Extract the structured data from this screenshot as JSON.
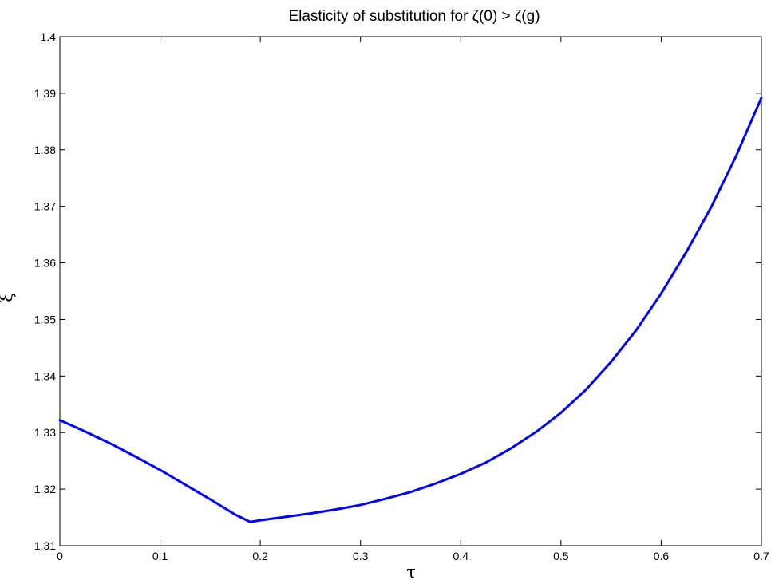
{
  "chart_data": {
    "type": "line",
    "title": "Elasticity of substitution for ζ(0) > ζ(g)",
    "xlabel": "τ",
    "ylabel": "ξ",
    "xlim": [
      0,
      0.7
    ],
    "ylim": [
      1.31,
      1.4
    ],
    "xticks": [
      "0",
      "0.1",
      "0.2",
      "0.3",
      "0.4",
      "0.5",
      "0.6",
      "0.7"
    ],
    "yticks": [
      "1.31",
      "1.32",
      "1.33",
      "1.34",
      "1.35",
      "1.36",
      "1.37",
      "1.38",
      "1.39",
      "1.4"
    ],
    "grid": false,
    "legend": "none",
    "series": [
      {
        "color": "#0000ff",
        "x": [
          0,
          0.025,
          0.05,
          0.075,
          0.1,
          0.125,
          0.15,
          0.175,
          0.19,
          0.2,
          0.225,
          0.25,
          0.275,
          0.3,
          0.325,
          0.35,
          0.375,
          0.4,
          0.425,
          0.45,
          0.475,
          0.5,
          0.525,
          0.55,
          0.575,
          0.6,
          0.625,
          0.65,
          0.675,
          0.7
        ],
        "y": [
          1.3322,
          1.3302,
          1.3281,
          1.3258,
          1.3234,
          1.3208,
          1.3182,
          1.3155,
          1.3142,
          1.3145,
          1.3151,
          1.3157,
          1.3164,
          1.3172,
          1.3183,
          1.3195,
          1.321,
          1.3227,
          1.3247,
          1.3272,
          1.3301,
          1.3335,
          1.3376,
          1.3425,
          1.3481,
          1.3546,
          1.3619,
          1.3699,
          1.379,
          1.3892
        ]
      }
    ]
  }
}
